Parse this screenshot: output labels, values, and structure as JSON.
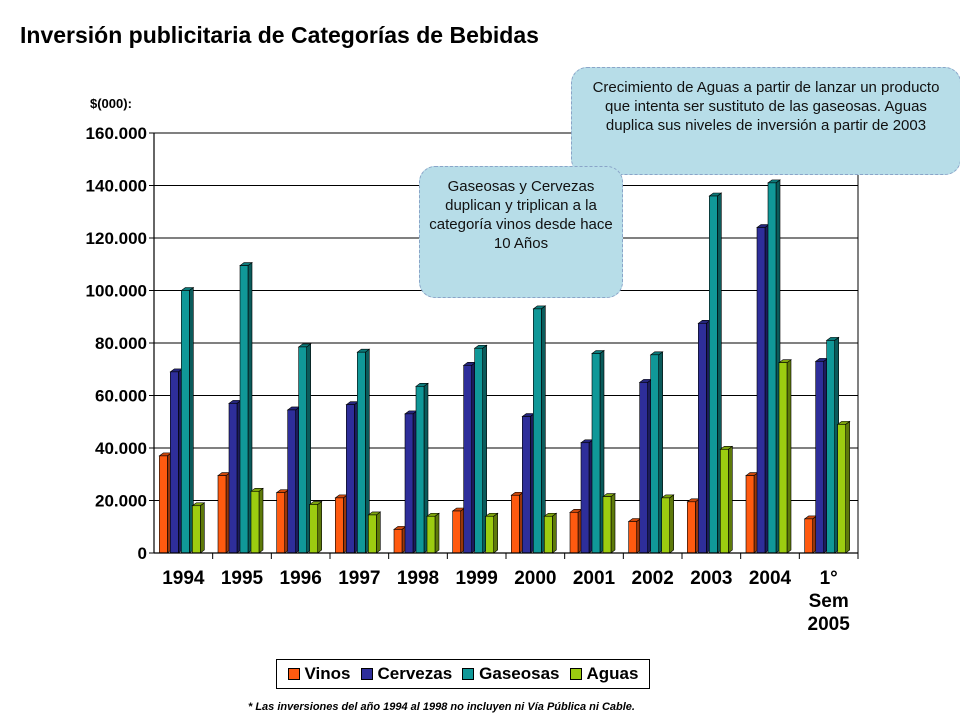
{
  "title": "Inversión publicitaria de Categorías de Bebidas",
  "unit_label": "$(000):",
  "callouts": [
    "Crecimiento de Aguas a partir de lanzar un producto que intenta ser sustituto de las gaseosas. Aguas duplica  sus niveles de inversión a partir de 2003",
    "Gaseosas y Cervezas duplican y triplican a la categoría vinos desde hace 10 Años"
  ],
  "footnote": "* Las inversiones  del año 1994 al 1998 no incluyen ni Vía Pública ni Cable.",
  "colors": {
    "Vinos": "#ff5a10",
    "Cervezas": "#2e2e9a",
    "Gaseosas": "#109898",
    "Aguas": "#9ccc10"
  },
  "chart_data": {
    "type": "bar",
    "title": "Inversión publicitaria de Categorías de Bebidas",
    "ylabel": "$(000):",
    "xlabel": "",
    "categories": [
      "1994",
      "1995",
      "1996",
      "1997",
      "1998",
      "1999",
      "2000",
      "2001",
      "2002",
      "2003",
      "2004",
      "1° Sem 2005"
    ],
    "series": [
      {
        "name": "Vinos",
        "values": [
          37000,
          29500,
          23000,
          21000,
          9000,
          16000,
          22000,
          15500,
          12000,
          19500,
          29500,
          13000
        ]
      },
      {
        "name": "Cervezas",
        "values": [
          69000,
          57000,
          54500,
          56500,
          53000,
          71500,
          52000,
          42000,
          65000,
          87500,
          124000,
          73000
        ]
      },
      {
        "name": "Gaseosas",
        "values": [
          100000,
          109500,
          78500,
          76500,
          63500,
          78000,
          93000,
          76000,
          75500,
          136000,
          141000,
          81000
        ]
      },
      {
        "name": "Aguas",
        "values": [
          18000,
          23500,
          18500,
          14500,
          14000,
          14000,
          14000,
          21500,
          21000,
          39500,
          72500,
          49000
        ]
      }
    ],
    "ylim": [
      0,
      160000
    ],
    "yticks": [
      "0",
      "20.000",
      "40.000",
      "60.000",
      "80.000",
      "100.000",
      "120.000",
      "140.000",
      "160.000"
    ],
    "grid": true,
    "legend_position": "bottom"
  }
}
